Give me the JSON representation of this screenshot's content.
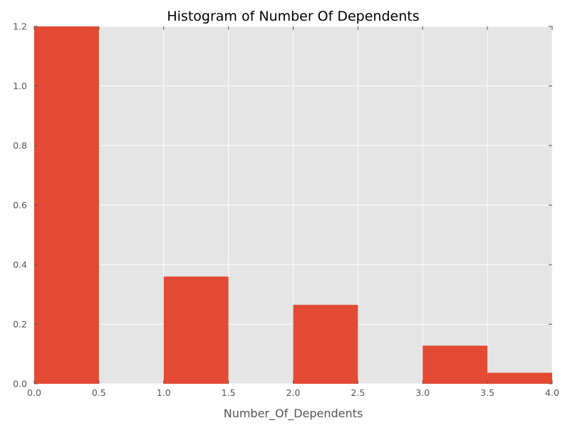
{
  "chart_data": {
    "type": "bar",
    "title": "Histogram of Number Of Dependents",
    "xlabel": "Number_Of_Dependents",
    "ylabel": "",
    "xlim": [
      0.0,
      4.0
    ],
    "ylim": [
      0.0,
      1.2
    ],
    "x_ticks": [
      "0.0",
      "0.5",
      "1.0",
      "1.5",
      "2.0",
      "2.5",
      "3.0",
      "3.5",
      "4.0"
    ],
    "y_ticks": [
      "0.0",
      "0.2",
      "0.4",
      "0.6",
      "0.8",
      "1.0",
      "1.2"
    ],
    "bins": [
      {
        "start": 0.0,
        "end": 0.5,
        "value": 1.2
      },
      {
        "start": 0.5,
        "end": 1.0,
        "value": 0.0
      },
      {
        "start": 1.0,
        "end": 1.5,
        "value": 0.36
      },
      {
        "start": 1.5,
        "end": 2.0,
        "value": 0.0
      },
      {
        "start": 2.0,
        "end": 2.5,
        "value": 0.265
      },
      {
        "start": 2.5,
        "end": 3.0,
        "value": 0.0
      },
      {
        "start": 3.0,
        "end": 3.5,
        "value": 0.128
      },
      {
        "start": 3.5,
        "end": 4.0,
        "value": 0.037
      }
    ],
    "grid": true,
    "style": {
      "bar_color": "#E24A33",
      "plot_background": "#E5E5E5",
      "grid_color": "#FFFFFF"
    }
  }
}
